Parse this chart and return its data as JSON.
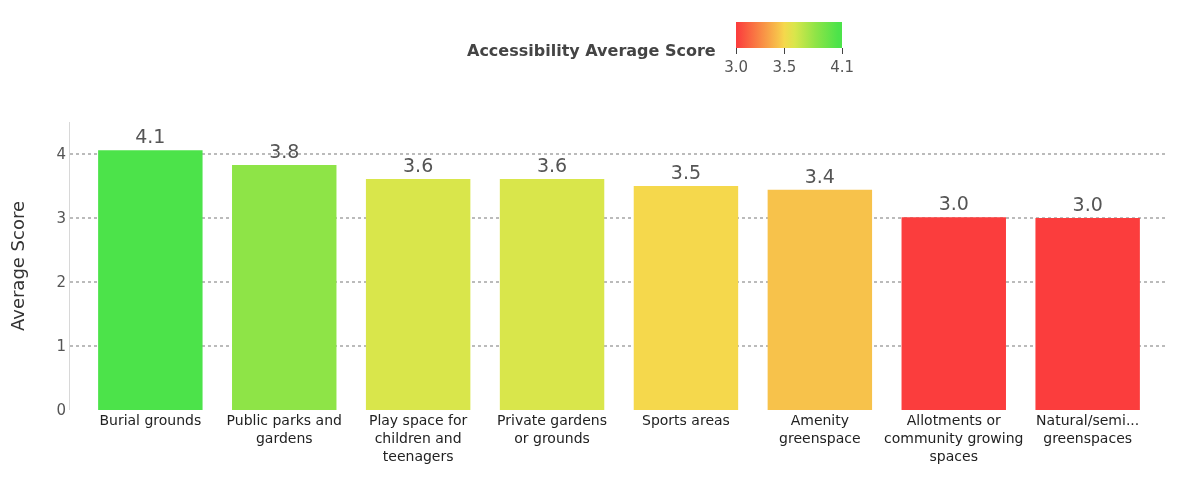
{
  "chart_data": {
    "type": "bar",
    "ylabel": "Average Score",
    "clabel": "Accessibility Average Score",
    "categories": [
      "Burial grounds",
      "Public parks and gardens",
      "Play space for children and teenagers",
      "Private gardens or grounds",
      "Sports areas",
      "Amenity greenspace",
      "Allotments or community growing spaces",
      "Natural/semi... greenspaces"
    ],
    "values": [
      4.06,
      3.83,
      3.61,
      3.61,
      3.5,
      3.44,
      3.01,
      3.0
    ],
    "value_labels": [
      "4.1",
      "3.8",
      "3.6",
      "3.6",
      "3.5",
      "3.4",
      "3.0",
      "3.0"
    ],
    "colors": [
      "#4ce34a",
      "#8ee447",
      "#d9e64b",
      "#d9e64b",
      "#f5d84c",
      "#f7c24b",
      "#fb3d3d",
      "#fb3d3d"
    ],
    "clim": [
      3.0,
      4.1
    ],
    "cticks": [
      {
        "value": 3.0,
        "label": "3.0"
      },
      {
        "value": 3.5,
        "label": "3.5"
      },
      {
        "value": 4.1,
        "label": "4.1"
      }
    ],
    "ylim": [
      0,
      4.5
    ],
    "yticks": [
      0,
      1,
      2,
      3,
      4
    ],
    "grid": "y",
    "legend": false
  }
}
